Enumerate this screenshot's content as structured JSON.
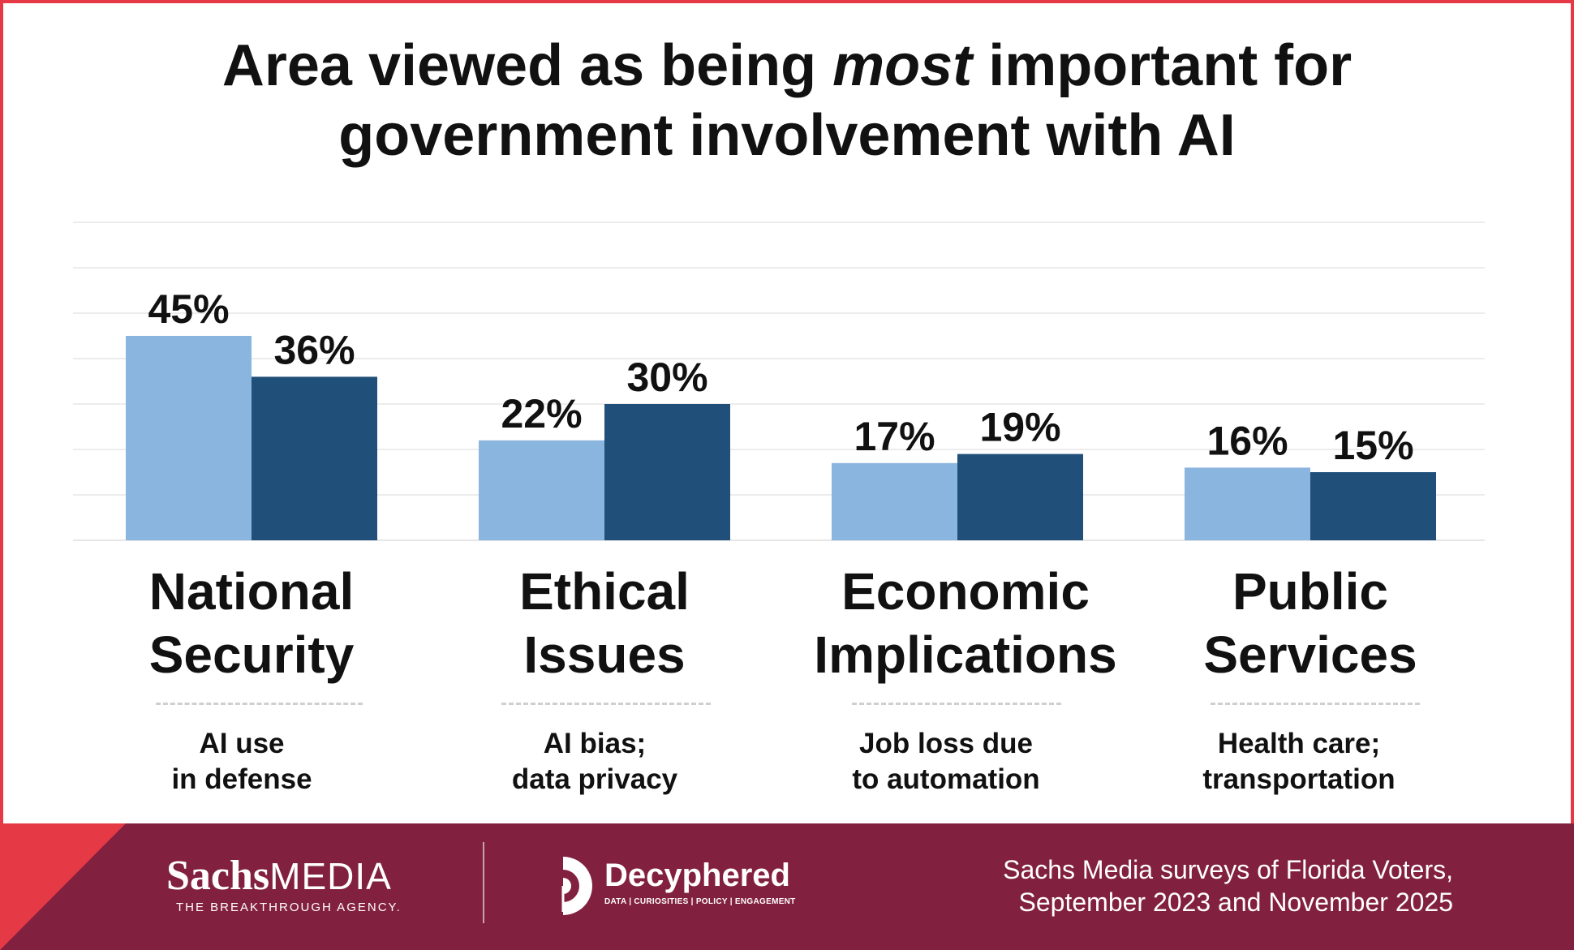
{
  "title": {
    "part1": "Area viewed as being ",
    "emph": "most",
    "part2": " important for",
    "line2": "government involvement with AI"
  },
  "colors": {
    "series_2023": "#8ab5df",
    "series_2025": "#204f7a",
    "frame": "#e63946",
    "footer": "#822040",
    "grid": "#e6e6e6"
  },
  "chart_data": {
    "type": "bar",
    "title": "Area viewed as being most important for government involvement with AI",
    "categories": [
      "National Security",
      "Ethical Issues",
      "Economic Implications",
      "Public Services"
    ],
    "series": [
      {
        "name": "September 2023",
        "values": [
          45,
          22,
          17,
          16
        ],
        "labels": [
          "45%",
          "22%",
          "17%",
          "16%"
        ]
      },
      {
        "name": "November 2025",
        "values": [
          36,
          30,
          19,
          15
        ],
        "labels": [
          "36%",
          "30%",
          "19%",
          "15%"
        ]
      }
    ],
    "ylim": [
      0,
      70
    ],
    "grid": true,
    "xlabel": "",
    "ylabel": ""
  },
  "categories": [
    {
      "line1": "National",
      "line2": "Security",
      "sub1": "AI use",
      "sub2": "in defense"
    },
    {
      "line1": "Ethical",
      "line2": "Issues",
      "sub1": "AI bias;",
      "sub2": "data privacy"
    },
    {
      "line1": "Economic",
      "line2": "Implications",
      "sub1": "Job loss due",
      "sub2": "to automation"
    },
    {
      "line1": "Public",
      "line2": "Services",
      "sub1": "Health care;",
      "sub2": "transportation"
    }
  ],
  "footer": {
    "sachs_bold": "Sachs",
    "sachs_media": "MEDIA",
    "sachs_tagline": "THE BREAKTHROUGH AGENCY.",
    "decyphered": "Decyphered",
    "decyphered_tagline": "DATA | CURIOSITIES | POLICY | ENGAGEMENT",
    "source_line1": "Sachs Media surveys of Florida Voters,",
    "source_line2": "September 2023 and November 2025"
  }
}
